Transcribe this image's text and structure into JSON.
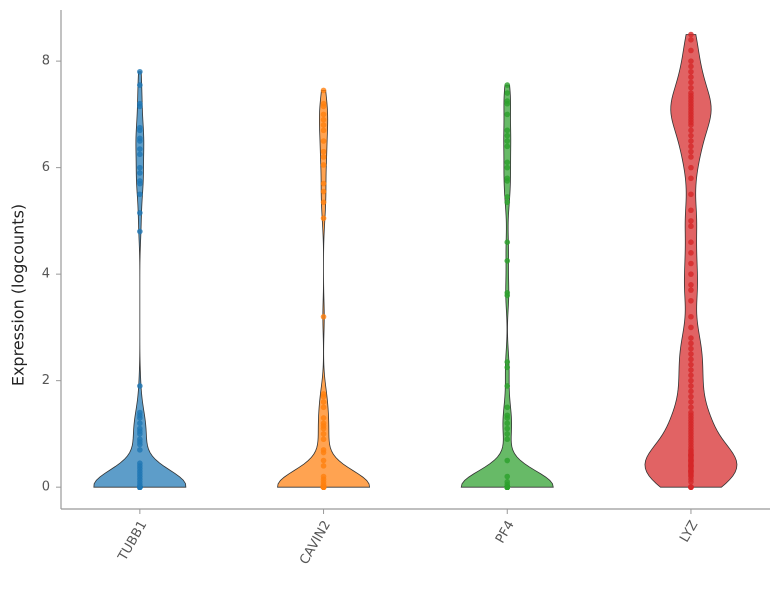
{
  "chart_data": {
    "type": "violin",
    "y_label": "Expression (logcounts)",
    "categories": [
      "TUBB1",
      "CAVIN2",
      "PF4",
      "LYZ"
    ],
    "ylim": [
      -0.41,
      8.96
    ],
    "yticks": [
      0,
      2,
      4,
      6,
      8
    ],
    "series": [
      {
        "name": "TUBB1",
        "color": "#1f77b4",
        "values": [
          0,
          0,
          0,
          0,
          0,
          0,
          0,
          0,
          0,
          0,
          0,
          0,
          0,
          0,
          0,
          0,
          0,
          0,
          0,
          0,
          0,
          0,
          0,
          0,
          0,
          0,
          0,
          0,
          0,
          0,
          0,
          0,
          0,
          0,
          0,
          0,
          0,
          0,
          0,
          0,
          0,
          0,
          0,
          0,
          0,
          0,
          0,
          0,
          0,
          0,
          0,
          0,
          0,
          0,
          0,
          0,
          0,
          0,
          0,
          0,
          0.05,
          0.1,
          0.15,
          0.2,
          0.25,
          0.3,
          0.35,
          0.4,
          0.45,
          0.7,
          0.8,
          0.85,
          0.9,
          1.0,
          1.05,
          1.1,
          1.2,
          1.3,
          1.35,
          1.4,
          1.9,
          4.8,
          5.15,
          5.5,
          5.7,
          5.75,
          5.9,
          6.0,
          6.25,
          6.35,
          6.5,
          6.55,
          6.7,
          6.75,
          7.15,
          7.2,
          7.55,
          7.8
        ]
      },
      {
        "name": "CAVIN2",
        "color": "#ff7f0e",
        "values": [
          0,
          0,
          0,
          0,
          0,
          0,
          0,
          0,
          0,
          0,
          0,
          0,
          0,
          0,
          0,
          0,
          0,
          0,
          0,
          0,
          0,
          0,
          0,
          0,
          0,
          0,
          0,
          0,
          0,
          0,
          0,
          0,
          0,
          0,
          0,
          0,
          0,
          0,
          0,
          0,
          0,
          0,
          0,
          0,
          0,
          0,
          0,
          0,
          0,
          0,
          0,
          0,
          0,
          0,
          0,
          0,
          0,
          0,
          0,
          0,
          0.05,
          0.1,
          0.15,
          0.2,
          0.4,
          0.5,
          0.65,
          0.7,
          0.9,
          1.0,
          1.1,
          1.15,
          1.2,
          1.3,
          1.5,
          1.6,
          1.7,
          1.75,
          3.2,
          5.05,
          5.35,
          5.55,
          5.7,
          6.05,
          6.2,
          6.3,
          6.5,
          6.7,
          6.8,
          6.9,
          7.0,
          7.15,
          7.2,
          7.45
        ]
      },
      {
        "name": "PF4",
        "color": "#2ca02c",
        "values": [
          0,
          0,
          0,
          0,
          0,
          0,
          0,
          0,
          0,
          0,
          0,
          0,
          0,
          0,
          0,
          0,
          0,
          0,
          0,
          0,
          0,
          0,
          0,
          0,
          0,
          0,
          0,
          0,
          0,
          0,
          0,
          0,
          0,
          0,
          0,
          0,
          0,
          0,
          0,
          0,
          0,
          0,
          0,
          0,
          0,
          0,
          0,
          0,
          0,
          0,
          0,
          0,
          0,
          0,
          0,
          0,
          0,
          0,
          0,
          0,
          0.05,
          0.1,
          0.2,
          0.5,
          0.9,
          1.0,
          1.1,
          1.2,
          1.3,
          1.35,
          1.5,
          1.9,
          2.25,
          2.35,
          3.6,
          3.65,
          4.25,
          4.6,
          5.35,
          5.45,
          5.75,
          5.8,
          6.0,
          6.1,
          6.4,
          6.5,
          6.6,
          6.7,
          7.0,
          7.2,
          7.25,
          7.4,
          7.55
        ]
      },
      {
        "name": "LYZ",
        "color": "#d62728",
        "values": [
          0,
          0,
          0,
          0,
          0,
          0,
          0,
          0,
          0.1,
          0.15,
          0.2,
          0.22,
          0.25,
          0.28,
          0.3,
          0.3,
          0.32,
          0.35,
          0.38,
          0.4,
          0.4,
          0.42,
          0.45,
          0.48,
          0.5,
          0.5,
          0.52,
          0.55,
          0.58,
          0.6,
          0.6,
          0.62,
          0.65,
          0.68,
          0.7,
          0.75,
          0.8,
          0.85,
          0.9,
          0.95,
          1.0,
          1.05,
          1.1,
          1.15,
          1.2,
          1.25,
          1.3,
          1.35,
          1.4,
          1.5,
          1.6,
          1.7,
          1.8,
          1.9,
          2.0,
          2.1,
          2.2,
          2.3,
          2.4,
          2.5,
          2.6,
          2.7,
          2.8,
          3.0,
          3.2,
          3.5,
          3.7,
          3.8,
          4.0,
          4.2,
          4.4,
          4.6,
          4.9,
          5.0,
          5.2,
          5.5,
          5.8,
          6.0,
          6.2,
          6.3,
          6.4,
          6.5,
          6.6,
          6.7,
          6.8,
          6.85,
          6.9,
          6.95,
          7.0,
          7.05,
          7.1,
          7.15,
          7.2,
          7.25,
          7.3,
          7.35,
          7.4,
          7.5,
          7.6,
          7.7,
          7.8,
          7.9,
          8.0,
          8.2,
          8.4,
          8.5
        ]
      }
    ]
  }
}
